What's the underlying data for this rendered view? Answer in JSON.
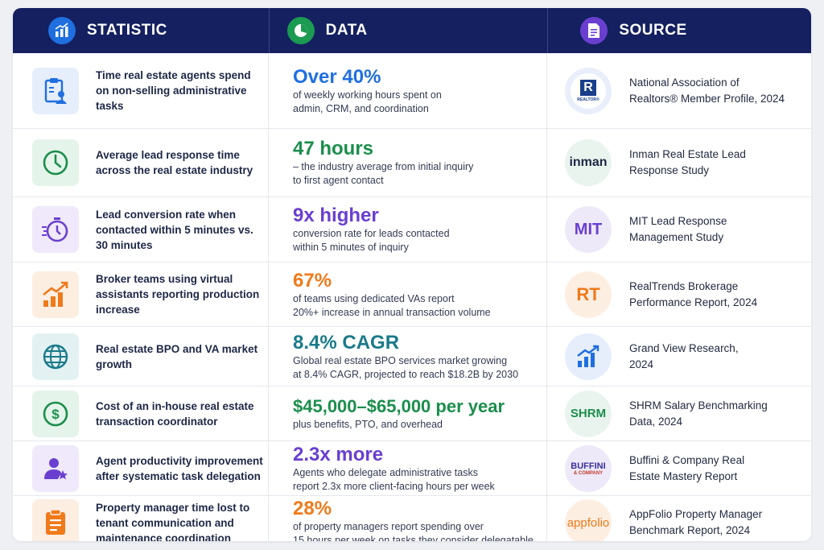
{
  "header": {
    "statistic": "STATISTIC",
    "data": "DATA",
    "source": "SOURCE"
  },
  "rows": [
    {
      "statistic": "Time real estate agents spend on non-selling administrative tasks",
      "value": "Over 40%",
      "description": "of weekly working hours spent on\nadmin, CRM, and coordination",
      "source": "National Association of\nRealtors® Member Profile, 2024",
      "icon": "clipboard-user-icon",
      "color": "#1f6fe0",
      "logo_text": "REALTOR®"
    },
    {
      "statistic": "Average lead response time across the real estate industry",
      "value": "47 hours",
      "description": "– the industry average from initial inquiry\nto first agent contact",
      "source": "Inman Real Estate Lead\nResponse Study",
      "icon": "clock-icon",
      "color": "#1b8e4c",
      "logo_text": "inman"
    },
    {
      "statistic": "Lead conversion rate when contacted within 5 minutes vs. 30 minutes",
      "value": "9x higher",
      "description": "conversion rate for leads contacted\nwithin 5 minutes of inquiry",
      "source": "MIT Lead Response\nManagement Study",
      "icon": "stopwatch-icon",
      "color": "#6a3fd0",
      "logo_text": "MIT"
    },
    {
      "statistic": "Broker teams using virtual assistants reporting production increase",
      "value": "67%",
      "description": "of teams using dedicated VAs report\n20%+ increase in annual transaction volume",
      "source": "RealTrends Brokerage\nPerformance Report, 2024",
      "icon": "growth-chart-icon",
      "color": "#f07a1a",
      "logo_text": "RT"
    },
    {
      "statistic": "Real estate BPO and VA market growth",
      "value": "8.4% CAGR",
      "description": "Global real estate BPO services market growing\nat 8.4% CAGR, projected to reach $18.2B by 2030",
      "source": "Grand View Research,\n2024",
      "icon": "globe-icon",
      "color": "#1a7a8a",
      "logo_text": ""
    },
    {
      "statistic": "Cost of an in-house real estate transaction coordinator",
      "value": "$45,000–$65,000 per year",
      "description": "plus benefits, PTO, and overhead",
      "source": "SHRM Salary Benchmarking\nData, 2024",
      "icon": "dollar-icon",
      "color": "#1b8e4c",
      "logo_text": "SHRM"
    },
    {
      "statistic": "Agent productivity improvement after systematic task delegation",
      "value": "2.3x more",
      "description": "Agents who delegate administrative tasks\nreport 2.3x more client-facing hours per week",
      "source": "Buffini & Company Real\nEstate Mastery Report",
      "icon": "user-star-icon",
      "color": "#6a3fd0",
      "logo_text": "BUFFINI",
      "logo_subtext": "& COMPANY"
    },
    {
      "statistic": "Property manager time lost to tenant communication and maintenance coordination",
      "value": "28%",
      "description": "of property managers report spending over\n15 hours per week on tasks they consider delegatable",
      "source": "AppFolio Property Manager\nBenchmark Report, 2024",
      "icon": "clipboard-list-icon",
      "color": "#f07a1a",
      "logo_text": "appfolio"
    }
  ]
}
